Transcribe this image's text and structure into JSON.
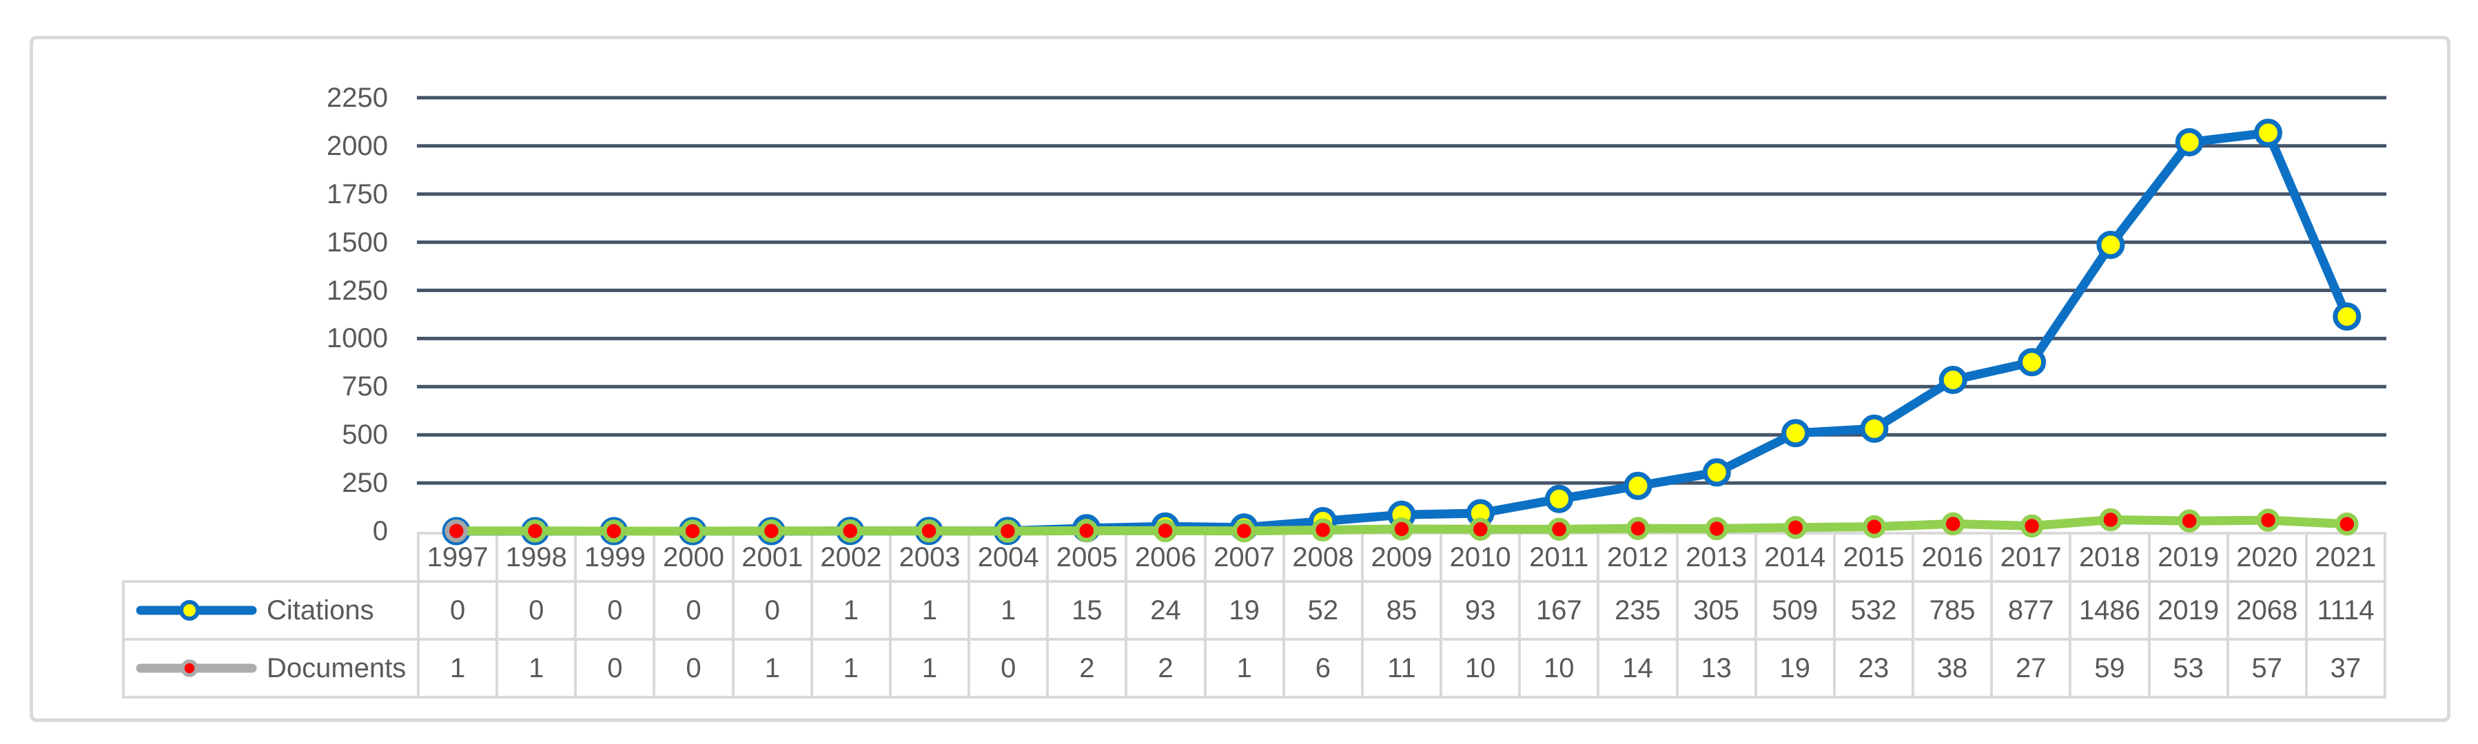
{
  "chart_data": {
    "type": "line",
    "title": "",
    "xlabel": "",
    "ylabel": "",
    "grid": true,
    "legend_position": "left-of-data-table",
    "categories": [
      "1997",
      "1998",
      "1999",
      "2000",
      "2001",
      "2002",
      "2003",
      "2004",
      "2005",
      "2006",
      "2007",
      "2008",
      "2009",
      "2010",
      "2011",
      "2012",
      "2013",
      "2014",
      "2015",
      "2016",
      "2017",
      "2018",
      "2019",
      "2020",
      "2021"
    ],
    "series": [
      {
        "name": "Citations",
        "values": [
          0,
          0,
          0,
          0,
          0,
          1,
          1,
          1,
          15,
          24,
          19,
          52,
          85,
          93,
          167,
          235,
          305,
          509,
          532,
          785,
          877,
          1486,
          2019,
          2068,
          1114
        ],
        "line_color": "#0C70C4",
        "marker_fill": "#FFFF00",
        "marker_ring": "#0C70C4"
      },
      {
        "name": "Documents",
        "values": [
          1,
          1,
          0,
          0,
          1,
          1,
          1,
          0,
          2,
          2,
          1,
          6,
          11,
          10,
          10,
          14,
          13,
          19,
          23,
          38,
          27,
          59,
          53,
          57,
          37
        ],
        "line_color": "#92D050",
        "marker_fill": "#FF0000",
        "marker_ring": "#92D050",
        "first_marker_ring": "#A6A6A6",
        "legend_line_color": "#ACACAC"
      }
    ],
    "yticks": [
      0,
      250,
      500,
      750,
      1000,
      1250,
      1500,
      1750,
      2000,
      2250
    ],
    "ylim": [
      0,
      2250
    ],
    "gridline_color": "#44546A"
  },
  "legend": {
    "citations_label": "Citations",
    "documents_label": "Documents"
  },
  "colors": {
    "panel_border": "#D9D9D9",
    "table_border": "#D9D9D9",
    "text": "#595959",
    "background": "#FFFFFF"
  }
}
